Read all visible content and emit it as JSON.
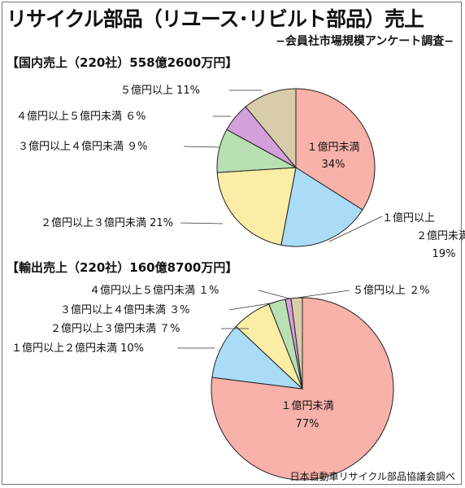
{
  "title": "リサイクル部品（リユース･リビルト部品）売上",
  "subtitle": "−会員社市場規模アンケート調査−",
  "source": "日本自動車リサイクル部品協議会調べ",
  "colors": {
    "lt1": "#f8b2aa",
    "b1to2": "#aadcf7",
    "b2to3": "#fbeda6",
    "b3to4": "#b9e0b3",
    "b4to5": "#d3a0d9",
    "ge5": "#d9ccaa",
    "stroke": "#222222"
  },
  "chart_data": [
    {
      "type": "pie",
      "title": "【国内売上（220社）558億2600万円】",
      "slices": [
        {
          "label": "１億円未満",
          "value": 34,
          "value_label": "34%",
          "color": "#f8b2aa"
        },
        {
          "label": "１億円以上 ２億円未満",
          "value": 19,
          "value_label": "19%",
          "color": "#aadcf7"
        },
        {
          "label": "２億円以上３億円未満",
          "value": 21,
          "value_label": "21%",
          "color": "#fbeda6"
        },
        {
          "label": "３億円以上４億円未満",
          "value": 9,
          "value_label": "９%",
          "color": "#b9e0b3"
        },
        {
          "label": "４億円以上５億円未満",
          "value": 6,
          "value_label": "６%",
          "color": "#d3a0d9"
        },
        {
          "label": "５億円以上",
          "value": 11,
          "value_label": "11%",
          "color": "#d9ccaa"
        }
      ]
    },
    {
      "type": "pie",
      "title": "【輸出売上（220社）160億8700万円】",
      "slices": [
        {
          "label": "１億円未満",
          "value": 77,
          "value_label": "77%",
          "color": "#f8b2aa"
        },
        {
          "label": "１億円以上２億円未満",
          "value": 10,
          "value_label": "10%",
          "color": "#aadcf7"
        },
        {
          "label": "２億円以上３億円未満",
          "value": 7,
          "value_label": "７%",
          "color": "#fbeda6"
        },
        {
          "label": "３億円以上４億円未満",
          "value": 3,
          "value_label": "３%",
          "color": "#b9e0b3"
        },
        {
          "label": "４億円以上５億円未満",
          "value": 1,
          "value_label": "１%",
          "color": "#d3a0d9"
        },
        {
          "label": "５億円以上",
          "value": 2,
          "value_label": "２%",
          "color": "#d9ccaa"
        }
      ]
    }
  ]
}
